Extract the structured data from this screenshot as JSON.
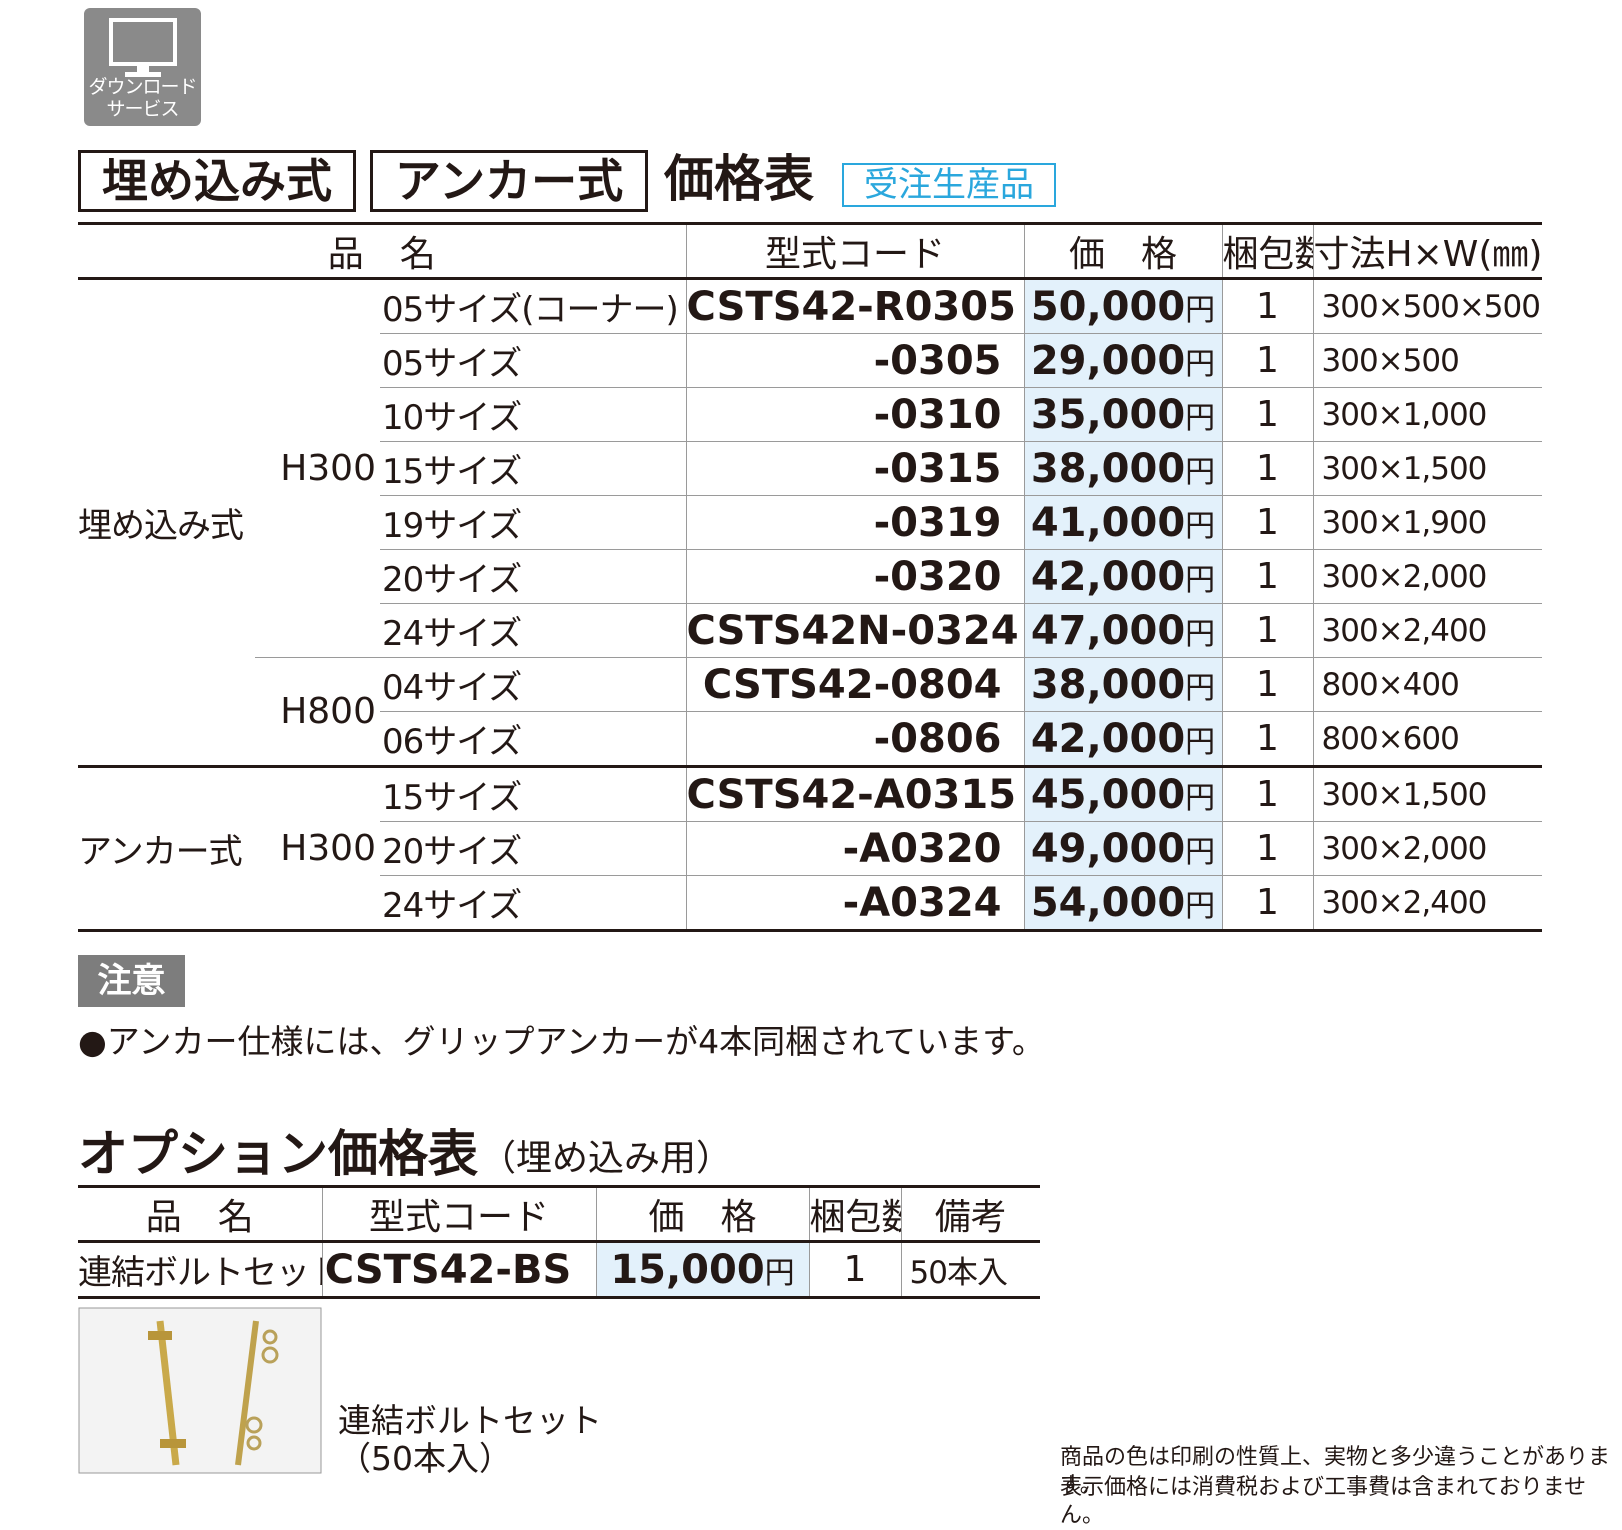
{
  "icon": {
    "lines": [
      "ダウンロード",
      "サービス"
    ]
  },
  "heading": {
    "tags": [
      "埋め込み式",
      "アンカー式"
    ],
    "title": "価格表",
    "badge": "受注生産品"
  },
  "table": {
    "headers": [
      "品　名",
      "型式コード",
      "価　格",
      "梱包数",
      "寸法H×W(㎜)"
    ],
    "currency": "円",
    "groups": [
      {
        "type": "埋め込み式",
        "heights": [
          {
            "height": "H300",
            "rows": [
              {
                "size": "05サイズ(コーナー)",
                "code": "CSTS42-R0305",
                "price": "50,000",
                "qty": 1,
                "dims": "300×500×500"
              },
              {
                "size": "05サイズ",
                "code": "-0305",
                "price": "29,000",
                "qty": 1,
                "dims": "300×500"
              },
              {
                "size": "10サイズ",
                "code": "-0310",
                "price": "35,000",
                "qty": 1,
                "dims": "300×1,000"
              },
              {
                "size": "15サイズ",
                "code": "-0315",
                "price": "38,000",
                "qty": 1,
                "dims": "300×1,500"
              },
              {
                "size": "19サイズ",
                "code": "-0319",
                "price": "41,000",
                "qty": 1,
                "dims": "300×1,900"
              },
              {
                "size": "20サイズ",
                "code": "-0320",
                "price": "42,000",
                "qty": 1,
                "dims": "300×2,000"
              },
              {
                "size": "24サイズ",
                "code": "CSTS42N-0324",
                "price": "47,000",
                "qty": 1,
                "dims": "300×2,400"
              }
            ]
          },
          {
            "height": "H800",
            "rows": [
              {
                "size": "04サイズ",
                "code": "CSTS42-0804",
                "price": "38,000",
                "qty": 1,
                "dims": "800×400"
              },
              {
                "size": "06サイズ",
                "code": "-0806",
                "price": "42,000",
                "qty": 1,
                "dims": "800×600"
              }
            ]
          }
        ]
      },
      {
        "type": "アンカー式",
        "heights": [
          {
            "height": "H300",
            "rows": [
              {
                "size": "15サイズ",
                "code": "CSTS42-A0315",
                "price": "45,000",
                "qty": 1,
                "dims": "300×1,500"
              },
              {
                "size": "20サイズ",
                "code": "-A0320",
                "price": "49,000",
                "qty": 1,
                "dims": "300×2,000"
              },
              {
                "size": "24サイズ",
                "code": "-A0324",
                "price": "54,000",
                "qty": 1,
                "dims": "300×2,400"
              }
            ]
          }
        ]
      }
    ]
  },
  "note": {
    "label": "注意",
    "text": "●アンカー仕様には、グリップアンカーが4本同梱されています。"
  },
  "option": {
    "title": "オプション価格表",
    "subtitle": "（埋め込み用）",
    "headers": [
      "品　名",
      "型式コード",
      "価　格",
      "梱包数",
      "備考"
    ],
    "currency": "円",
    "rows": [
      {
        "name": "連結ボルトセット",
        "code": "CSTS42-BS",
        "price": "15,000",
        "qty": 1,
        "remark": "50本入"
      }
    ],
    "caption": [
      "連結ボルトセット",
      "（50本入）"
    ]
  },
  "footer": [
    "商品の色は印刷の性質上、実物と多少違うことがあります。",
    "表示価格には消費税および工事費は含まれておりません。"
  ]
}
